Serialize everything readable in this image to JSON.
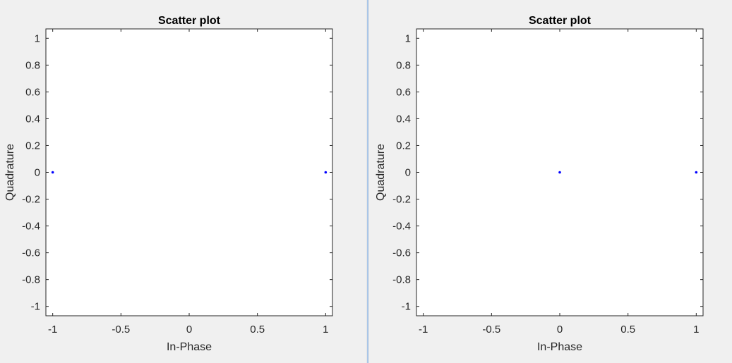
{
  "chart_data": [
    {
      "type": "scatter",
      "title": "Scatter plot",
      "xlabel": "In-Phase",
      "ylabel": "Quadrature",
      "xlim": [
        -1.05,
        1.05
      ],
      "ylim": [
        -1.07,
        1.07
      ],
      "xticks": [
        -1,
        -0.5,
        0,
        0.5,
        1
      ],
      "xtick_labels": [
        "-1",
        "-0.5",
        "0",
        "0.5",
        "1"
      ],
      "yticks": [
        1,
        0.8,
        0.6,
        0.4,
        0.2,
        0,
        -0.2,
        -0.4,
        -0.6,
        -0.8,
        -1
      ],
      "ytick_labels": [
        "1",
        "0.8",
        "0.6",
        "0.4",
        "0.2",
        "0",
        "-0.2",
        "-0.4",
        "-0.6",
        "-0.8",
        "-1"
      ],
      "grid": false,
      "marker_color": "#0000ff",
      "points": [
        {
          "x": -1,
          "y": 0
        },
        {
          "x": 1,
          "y": 0
        }
      ]
    },
    {
      "type": "scatter",
      "title": "Scatter plot",
      "xlabel": "In-Phase",
      "ylabel": "Quadrature",
      "xlim": [
        -1.05,
        1.05
      ],
      "ylim": [
        -1.07,
        1.07
      ],
      "xticks": [
        -1,
        -0.5,
        0,
        0.5,
        1
      ],
      "xtick_labels": [
        "-1",
        "-0.5",
        "0",
        "0.5",
        "1"
      ],
      "yticks": [
        1,
        0.8,
        0.6,
        0.4,
        0.2,
        0,
        -0.2,
        -0.4,
        -0.6,
        -0.8,
        -1
      ],
      "ytick_labels": [
        "1",
        "0.8",
        "0.6",
        "0.4",
        "0.2",
        "0",
        "-0.2",
        "-0.4",
        "-0.6",
        "-0.8",
        "-1"
      ],
      "grid": false,
      "marker_color": "#0000ff",
      "points": [
        {
          "x": 0,
          "y": 0
        },
        {
          "x": 1,
          "y": 0
        }
      ]
    }
  ]
}
